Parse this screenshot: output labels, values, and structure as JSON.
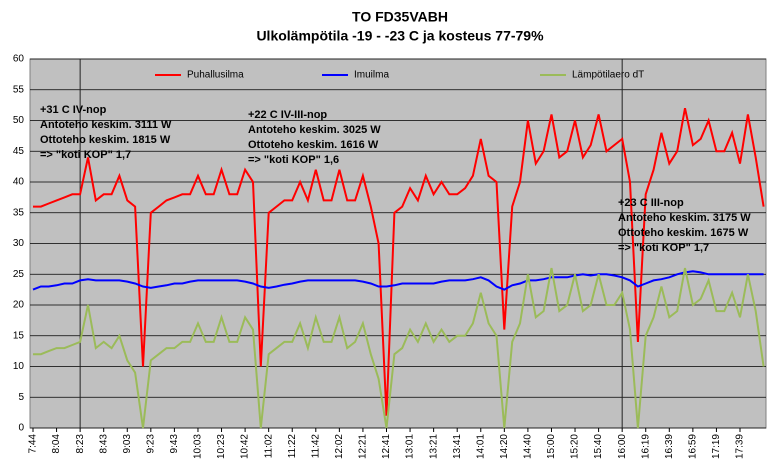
{
  "chart_data": {
    "type": "line",
    "title": "TO FD35VABH",
    "subtitle": "Ulkolämpötila -19 - -23 C ja kosteus 77-79%",
    "categories": [
      "7:44",
      null,
      null,
      "8:04",
      null,
      null,
      "8:23",
      null,
      null,
      "8:43",
      null,
      null,
      "9:03",
      null,
      null,
      "9:23",
      null,
      null,
      "9:43",
      null,
      null,
      "10:03",
      null,
      null,
      "10:23",
      null,
      null,
      "10:42",
      null,
      null,
      "11:02",
      null,
      null,
      "11:22",
      null,
      null,
      "11:42",
      null,
      null,
      "12:02",
      null,
      null,
      "12:21",
      null,
      null,
      "12:41",
      null,
      null,
      "13:01",
      null,
      null,
      "13:21",
      null,
      null,
      "13:41",
      null,
      null,
      "14:01",
      null,
      null,
      "14:20",
      null,
      null,
      "14:40",
      null,
      null,
      "15:00",
      null,
      null,
      "15:20",
      null,
      null,
      "15:40",
      null,
      null,
      "16:00",
      null,
      null,
      "16:19",
      null,
      null,
      "16:39",
      null,
      null,
      "16:59",
      null,
      null,
      "17:19",
      null,
      null,
      "17:39",
      null,
      null,
      null
    ],
    "series": [
      {
        "name": "Puhallusilma",
        "color": "#ff0000",
        "values": [
          36,
          36,
          36.5,
          37,
          37.5,
          38,
          38,
          44,
          37,
          38,
          38,
          41,
          37,
          36,
          10,
          35,
          36,
          37,
          37.5,
          38,
          38,
          41,
          38,
          38,
          42,
          38,
          38,
          42,
          40,
          10,
          35,
          36,
          37,
          37,
          40,
          37,
          42,
          37,
          37,
          42,
          37,
          37,
          41,
          36,
          30,
          2,
          35,
          36,
          39,
          37,
          41,
          38,
          40,
          38,
          38,
          39,
          41,
          47,
          41,
          40,
          16,
          36,
          40,
          50,
          43,
          45,
          51,
          44,
          45,
          50,
          44,
          46,
          51,
          45,
          46,
          47,
          40,
          14,
          38,
          42,
          48,
          43,
          45,
          52,
          46,
          47,
          50,
          45,
          45,
          48,
          43,
          51,
          44,
          36
        ]
      },
      {
        "name": "Imuilma",
        "color": "#0000ff",
        "values": [
          22.5,
          23,
          23,
          23.2,
          23.5,
          23.5,
          24,
          24.2,
          24,
          24,
          24,
          24,
          23.8,
          23.5,
          23,
          22.8,
          23,
          23.2,
          23.5,
          23.5,
          23.8,
          24,
          24,
          24,
          24,
          24,
          24,
          23.8,
          23.5,
          23,
          22.8,
          23,
          23.3,
          23.5,
          23.8,
          24,
          24,
          24,
          24,
          24,
          24,
          24,
          23.8,
          23.5,
          23,
          23,
          23.2,
          23.5,
          23.5,
          23.5,
          23.5,
          23.5,
          23.8,
          24,
          24,
          24,
          24.2,
          24.5,
          24,
          23,
          22.5,
          23.2,
          23.5,
          24,
          24,
          24.2,
          24.5,
          24.5,
          24.5,
          24.8,
          25,
          24.8,
          25,
          25,
          24.8,
          24.5,
          24,
          23,
          23.5,
          24,
          24.2,
          24.5,
          25,
          25.3,
          25.5,
          25.3,
          25,
          25,
          25,
          25,
          25,
          25,
          25,
          25
        ]
      },
      {
        "name": "Lämpötilaero dT",
        "color": "#9bbb59",
        "values": [
          12,
          12,
          12.5,
          13,
          13,
          13.5,
          14,
          20,
          13,
          14,
          13,
          15,
          11,
          9,
          0,
          11,
          12,
          13,
          13,
          14,
          14,
          17,
          14,
          14,
          18,
          14,
          14,
          18,
          16,
          0,
          12,
          13,
          14,
          14,
          17,
          13,
          18,
          14,
          14,
          18,
          13,
          14,
          17,
          12,
          8,
          0,
          12,
          13,
          16,
          14,
          17,
          14,
          16,
          14,
          15,
          15,
          17,
          22,
          17,
          15,
          0,
          14,
          17,
          25,
          18,
          19,
          26,
          19,
          20,
          25,
          19,
          20,
          25,
          20,
          20,
          22,
          16,
          0,
          15,
          18,
          23,
          18,
          19,
          26,
          20,
          21,
          24,
          19,
          19,
          22,
          18,
          25,
          19,
          10
        ]
      }
    ],
    "ylim": [
      0,
      60
    ],
    "yticks": [
      0,
      5,
      10,
      15,
      20,
      25,
      30,
      35,
      40,
      45,
      50,
      55,
      60
    ],
    "grid": true,
    "annotations": [
      [
        "+31 C IV-nop",
        "Antoteho keskim. 3111 W",
        "Ottoteho keskim. 1815 W",
        "=> \"koti KOP\" 1,7"
      ],
      [
        "+22 C IV-III-nop",
        "Antoteho keskim. 3025 W",
        "Ottoteho keskim. 1616 W",
        "=> \"koti KOP\" 1,6"
      ],
      [
        "+23 C III-nop",
        "Antoteho keskim. 3175 W",
        "Ottoteho keskim. 1675 W",
        "=> \"koti KOP\" 1,7"
      ]
    ]
  }
}
